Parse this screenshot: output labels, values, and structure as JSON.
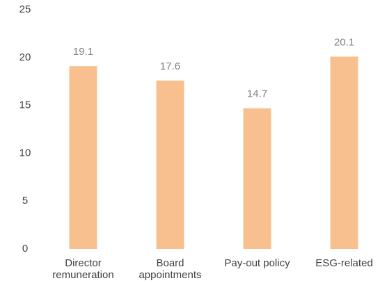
{
  "chart_data": {
    "type": "bar",
    "categories": [
      "Director\nremuneration",
      "Board\nappointments",
      "Pay-out policy",
      "ESG-related"
    ],
    "values": [
      19.1,
      17.6,
      14.7,
      20.1
    ],
    "color": "#f9c08f",
    "ylim": [
      0,
      25
    ],
    "yticks": [
      0,
      5,
      10,
      15,
      20,
      25
    ],
    "grid": false
  }
}
